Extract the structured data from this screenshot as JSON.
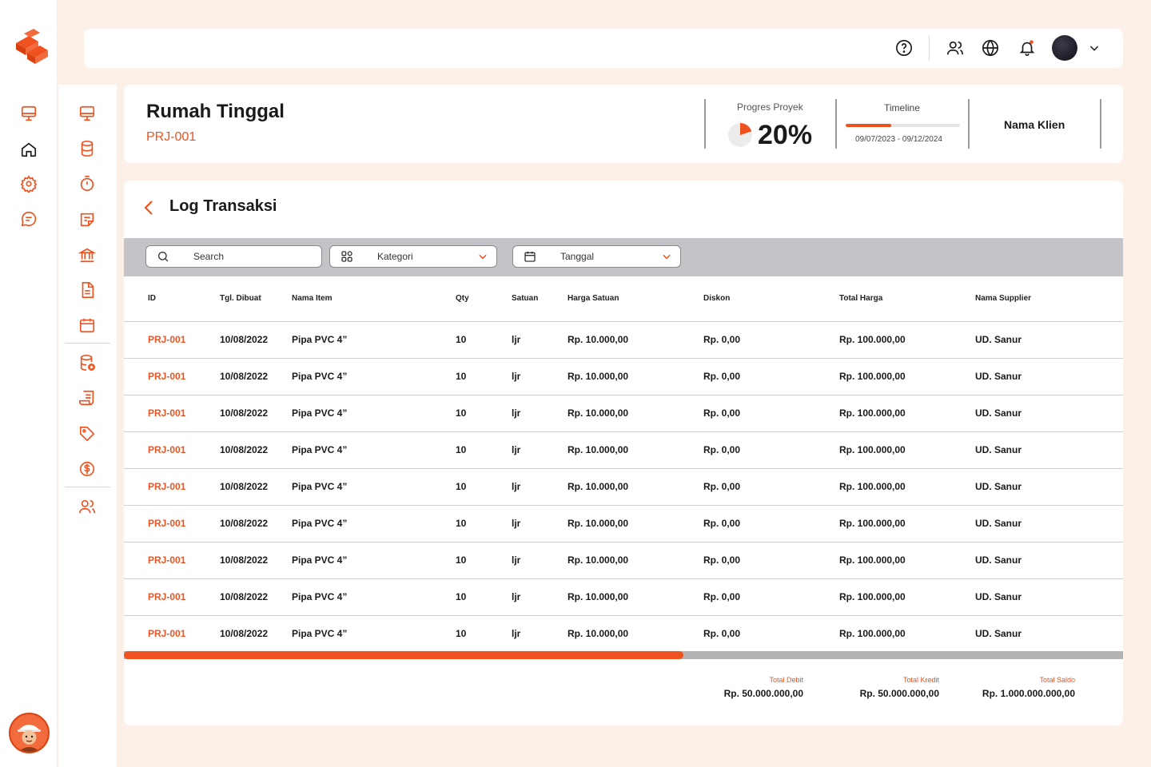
{
  "colors": {
    "accent": "#f0521f",
    "background": "#fdf0e8"
  },
  "rail": {
    "icons": [
      "monitor-icon",
      "home-icon",
      "gear-icon",
      "chat-icon"
    ]
  },
  "subnav": {
    "icons": [
      "monitor-icon",
      "database-icon",
      "timer-icon",
      "note-icon",
      "bank-icon",
      "document-icon",
      "calendar-icon",
      "database-add-icon",
      "receipt-icon",
      "tag-icon",
      "dollar-icon",
      "users-icon"
    ]
  },
  "topbar": {
    "icons": [
      "help-icon",
      "users-icon",
      "globe-icon",
      "bell-icon",
      "chevron-down-icon"
    ]
  },
  "project": {
    "title": "Rumah Tinggal",
    "code": "PRJ-001",
    "progress_label": "Progres Proyek",
    "progress_value": "20%",
    "progress_fraction": 0.2,
    "timeline_label": "Timeline",
    "timeline_fraction": 0.4,
    "timeline_dates": "09/07/2023 - 09/12/2024",
    "client_label": "Nama Klien"
  },
  "log": {
    "title": "Log Transaksi",
    "search_placeholder": "Search",
    "category_label": "Kategori",
    "date_label": "Tanggal",
    "columns": [
      "ID",
      "Tgl. Dibuat",
      "Nama Item",
      "Qty",
      "Satuan",
      "Harga Satuan",
      "Diskon",
      "Total Harga",
      "Nama Supplier"
    ],
    "rows": [
      [
        "PRJ-001",
        "10/08/2022",
        "Pipa PVC 4”",
        "10",
        "ljr",
        "Rp. 10.000,00",
        "Rp. 0,00",
        "Rp. 100.000,00",
        "UD. Sanur"
      ],
      [
        "PRJ-001",
        "10/08/2022",
        "Pipa PVC 4”",
        "10",
        "ljr",
        "Rp. 10.000,00",
        "Rp. 0,00",
        "Rp. 100.000,00",
        "UD. Sanur"
      ],
      [
        "PRJ-001",
        "10/08/2022",
        "Pipa PVC 4”",
        "10",
        "ljr",
        "Rp. 10.000,00",
        "Rp. 0,00",
        "Rp. 100.000,00",
        "UD. Sanur"
      ],
      [
        "PRJ-001",
        "10/08/2022",
        "Pipa PVC 4”",
        "10",
        "ljr",
        "Rp. 10.000,00",
        "Rp. 0,00",
        "Rp. 100.000,00",
        "UD. Sanur"
      ],
      [
        "PRJ-001",
        "10/08/2022",
        "Pipa PVC 4”",
        "10",
        "ljr",
        "Rp. 10.000,00",
        "Rp. 0,00",
        "Rp. 100.000,00",
        "UD. Sanur"
      ],
      [
        "PRJ-001",
        "10/08/2022",
        "Pipa PVC 4”",
        "10",
        "ljr",
        "Rp. 10.000,00",
        "Rp. 0,00",
        "Rp. 100.000,00",
        "UD. Sanur"
      ],
      [
        "PRJ-001",
        "10/08/2022",
        "Pipa PVC 4”",
        "10",
        "ljr",
        "Rp. 10.000,00",
        "Rp. 0,00",
        "Rp. 100.000,00",
        "UD. Sanur"
      ],
      [
        "PRJ-001",
        "10/08/2022",
        "Pipa PVC 4”",
        "10",
        "ljr",
        "Rp. 10.000,00",
        "Rp. 0,00",
        "Rp. 100.000,00",
        "UD. Sanur"
      ],
      [
        "PRJ-001",
        "10/08/2022",
        "Pipa PVC 4”",
        "10",
        "ljr",
        "Rp. 10.000,00",
        "Rp. 0,00",
        "Rp. 100.000,00",
        "UD. Sanur"
      ]
    ],
    "scroll_fraction": 0.56,
    "totals": {
      "debit_label": "Total Debit",
      "debit_value": "Rp. 50.000.000,00",
      "kredit_label": "Total Kredit",
      "kredit_value": "Rp. 50.000.000,00",
      "saldo_label": "Total Saldo",
      "saldo_value": "Rp. 1.000.000.000,00"
    }
  }
}
